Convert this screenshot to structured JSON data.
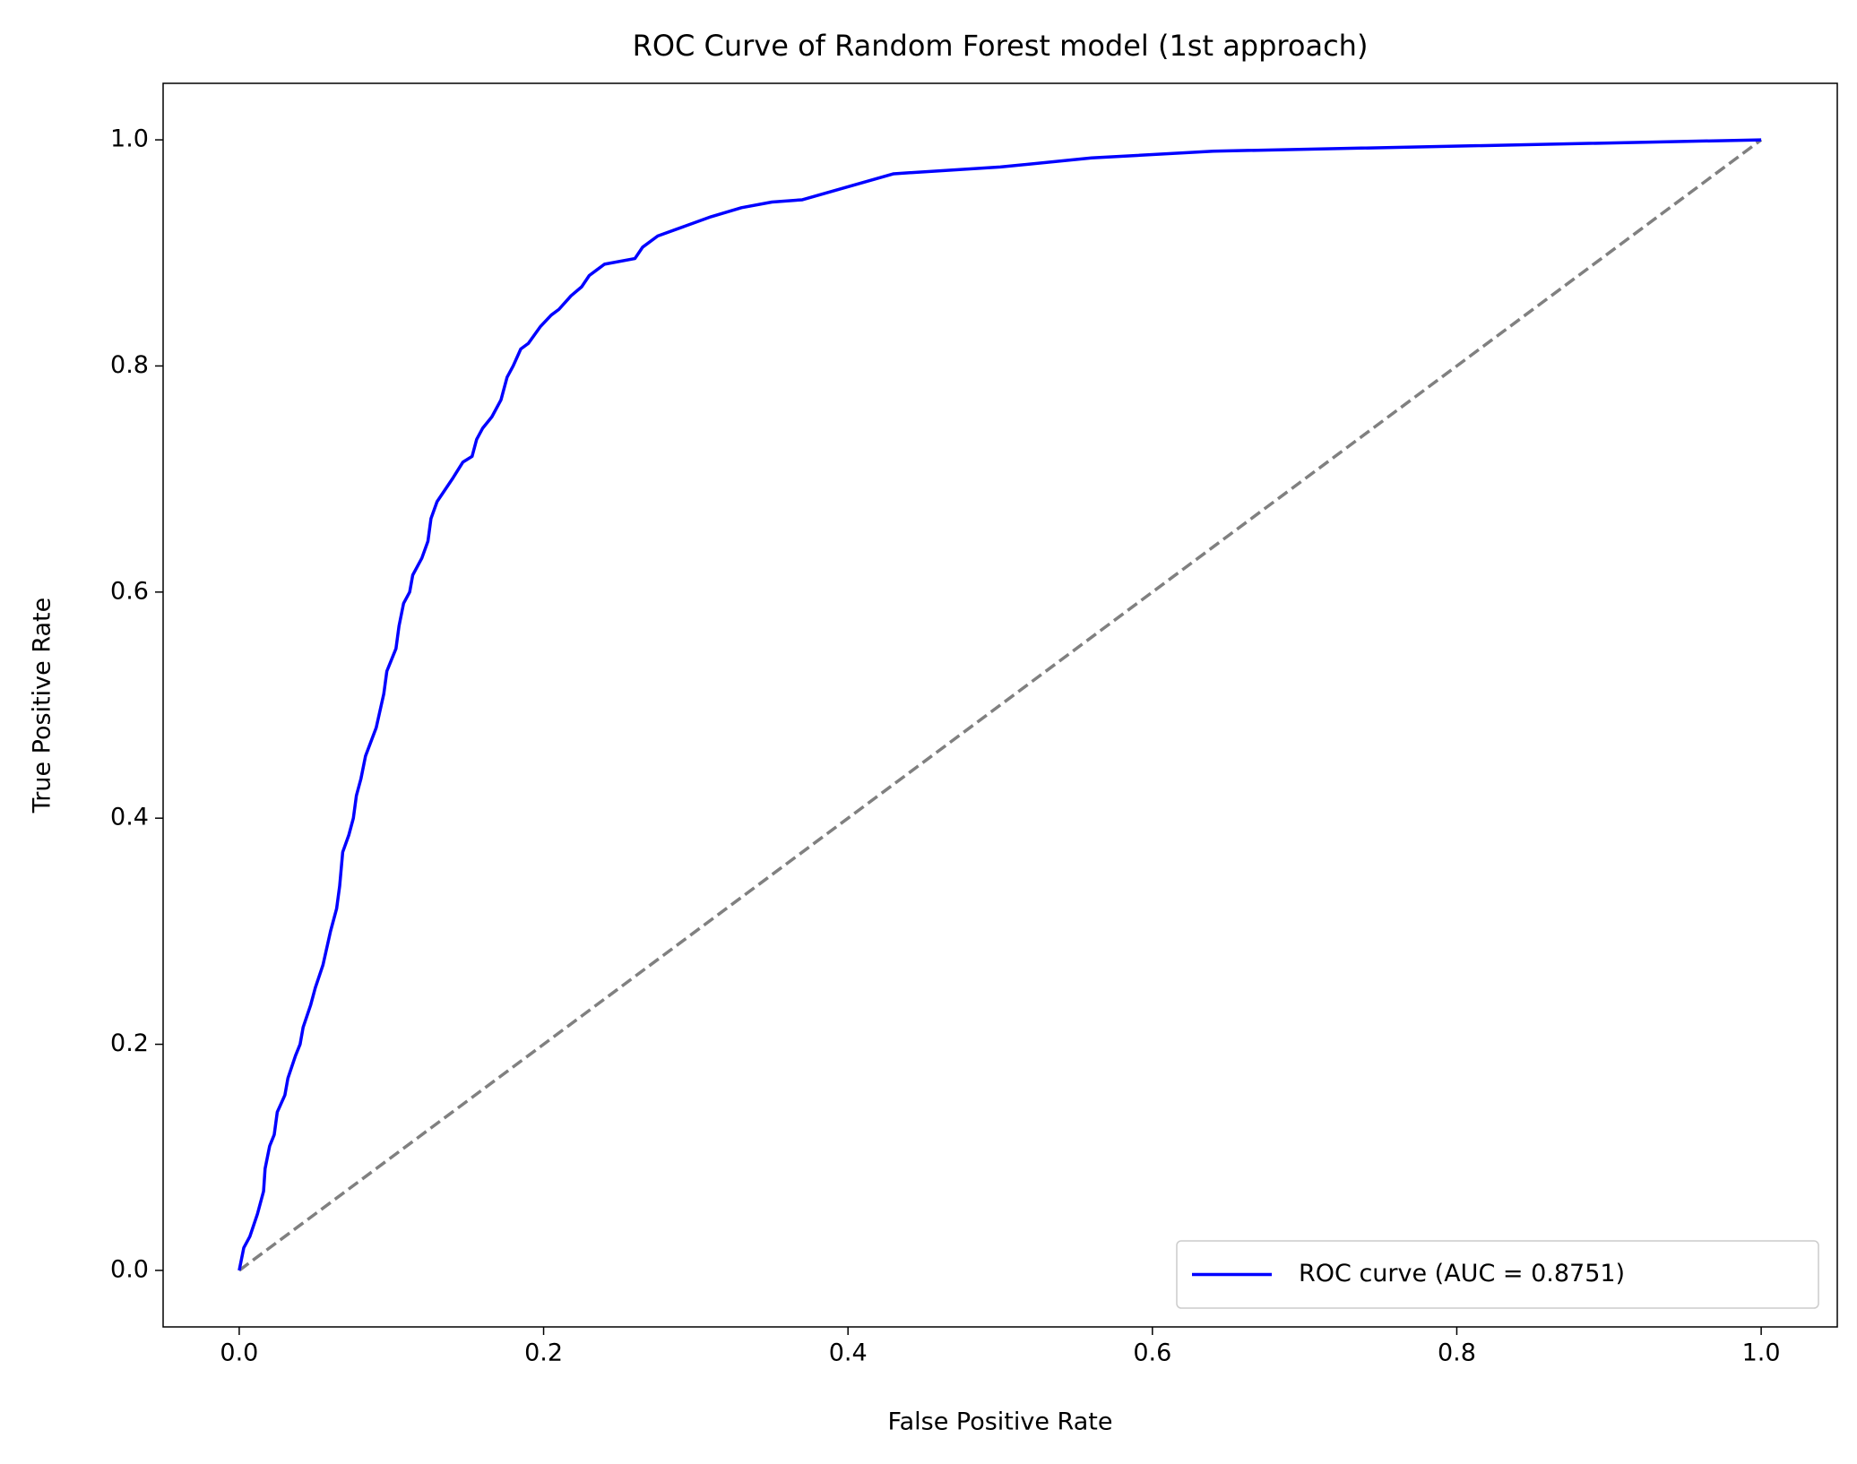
{
  "chart_data": {
    "type": "line",
    "title": "ROC Curve of Random Forest model (1st approach)",
    "xlabel": "False Positive Rate",
    "ylabel": "True Positive Rate",
    "xlim": [
      -0.05,
      1.05
    ],
    "ylim": [
      -0.05,
      1.05
    ],
    "xticks": [
      {
        "value": 0,
        "label": "0.0"
      },
      {
        "value": 0.2,
        "label": "0.2"
      },
      {
        "value": 0.4,
        "label": "0.4"
      },
      {
        "value": 0.6,
        "label": "0.6"
      },
      {
        "value": 0.8,
        "label": "0.8"
      },
      {
        "value": 1,
        "label": "1.0"
      }
    ],
    "yticks": [
      {
        "value": 0,
        "label": "0.0"
      },
      {
        "value": 0.2,
        "label": "0.2"
      },
      {
        "value": 0.4,
        "label": "0.4"
      },
      {
        "value": 0.6,
        "label": "0.6"
      },
      {
        "value": 0.8,
        "label": "0.8"
      },
      {
        "value": 1,
        "label": "1.0"
      }
    ],
    "legend_loc": "lower right",
    "series": [
      {
        "name": "ROC curve (AUC = 0.8751)",
        "color": "#0000ff",
        "x": [
          0,
          0.003,
          0.007,
          0.012,
          0.016,
          0.017,
          0.02,
          0.023,
          0.025,
          0.03,
          0.032,
          0.037,
          0.04,
          0.042,
          0.047,
          0.05,
          0.055,
          0.06,
          0.064,
          0.066,
          0.068,
          0.072,
          0.075,
          0.077,
          0.08,
          0.083,
          0.09,
          0.095,
          0.097,
          0.103,
          0.105,
          0.108,
          0.112,
          0.114,
          0.12,
          0.124,
          0.126,
          0.13,
          0.14,
          0.147,
          0.153,
          0.156,
          0.16,
          0.166,
          0.172,
          0.176,
          0.18,
          0.185,
          0.19,
          0.198,
          0.205,
          0.21,
          0.218,
          0.225,
          0.23,
          0.235,
          0.24,
          0.26,
          0.265,
          0.275,
          0.31,
          0.33,
          0.35,
          0.37,
          0.43,
          0.5,
          0.56,
          0.64,
          1
        ],
        "values": [
          0,
          0.02,
          0.03,
          0.05,
          0.07,
          0.09,
          0.11,
          0.12,
          0.14,
          0.155,
          0.17,
          0.19,
          0.2,
          0.215,
          0.235,
          0.25,
          0.27,
          0.3,
          0.32,
          0.34,
          0.37,
          0.385,
          0.4,
          0.42,
          0.435,
          0.455,
          0.48,
          0.51,
          0.53,
          0.55,
          0.57,
          0.59,
          0.6,
          0.615,
          0.63,
          0.645,
          0.665,
          0.68,
          0.7,
          0.715,
          0.72,
          0.735,
          0.745,
          0.755,
          0.77,
          0.79,
          0.8,
          0.815,
          0.82,
          0.835,
          0.845,
          0.85,
          0.862,
          0.87,
          0.88,
          0.885,
          0.89,
          0.895,
          0.905,
          0.915,
          0.932,
          0.94,
          0.945,
          0.947,
          0.97,
          0.976,
          0.984,
          0.99,
          1
        ]
      }
    ],
    "diagonal": {
      "color": "#808080",
      "x": [
        0,
        1
      ],
      "values": [
        0,
        1
      ]
    }
  }
}
